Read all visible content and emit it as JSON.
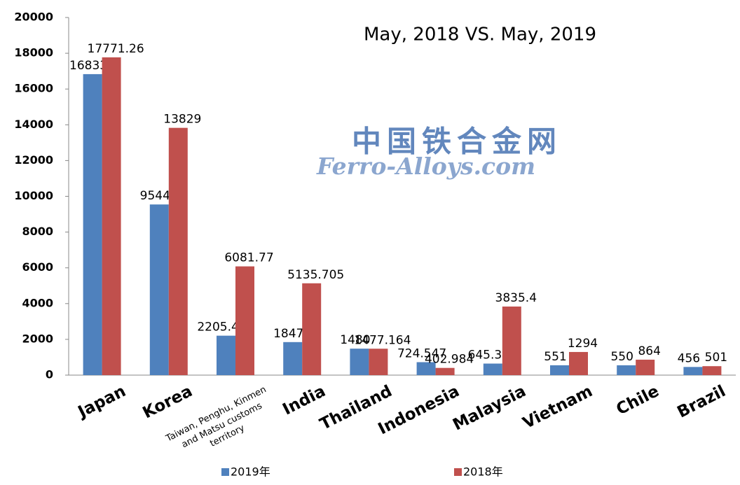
{
  "chart_data": {
    "type": "bar",
    "title": "May, 2018 VS. May, 2019",
    "watermark": [
      "中国铁合金网",
      "Ferro-Alloys.com"
    ],
    "categories": [
      "Japan",
      "Korea",
      "Taiwan, Penghu, Kinmen and Matsu customs territory",
      "India",
      "Thailand",
      "Indonesia",
      "Malaysia",
      "Vietnam",
      "Chile",
      "Brazil"
    ],
    "series": [
      {
        "name": "2019年",
        "color": "#4f81bd",
        "values": [
          16833,
          9544,
          2205.45,
          1847,
          1480,
          724.547,
          645.38,
          551,
          550,
          456
        ]
      },
      {
        "name": "2018年",
        "color": "#c0504d",
        "values": [
          17771.26,
          13829,
          6081.77,
          5135.705,
          1477.164,
          402.984,
          3835.4,
          1294,
          864,
          501
        ]
      }
    ],
    "ylim": [
      0,
      20000
    ],
    "yticks": [
      0,
      2000,
      4000,
      6000,
      8000,
      10000,
      12000,
      14000,
      16000,
      18000,
      20000
    ],
    "grid": false
  }
}
